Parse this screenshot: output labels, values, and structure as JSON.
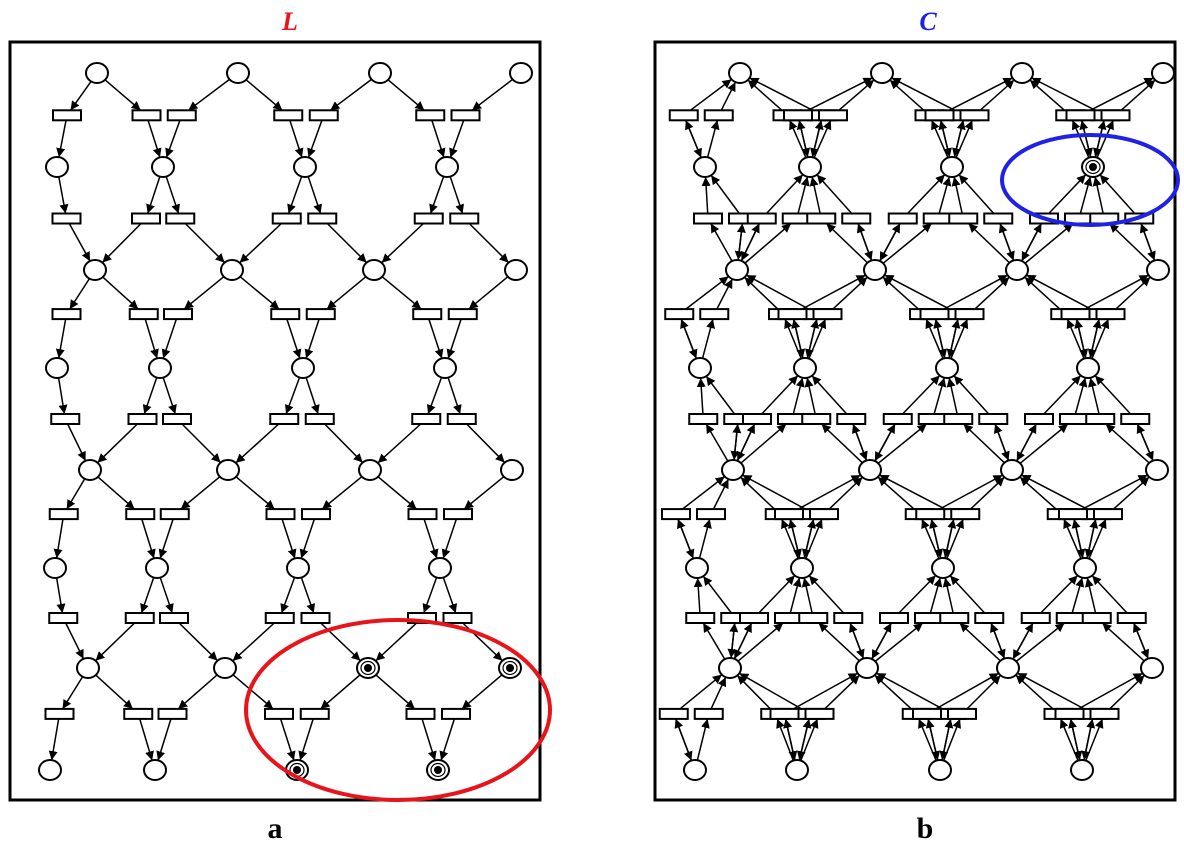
{
  "panels": [
    {
      "title": "L",
      "label": "a"
    },
    {
      "title": "C",
      "label": "b"
    }
  ]
}
